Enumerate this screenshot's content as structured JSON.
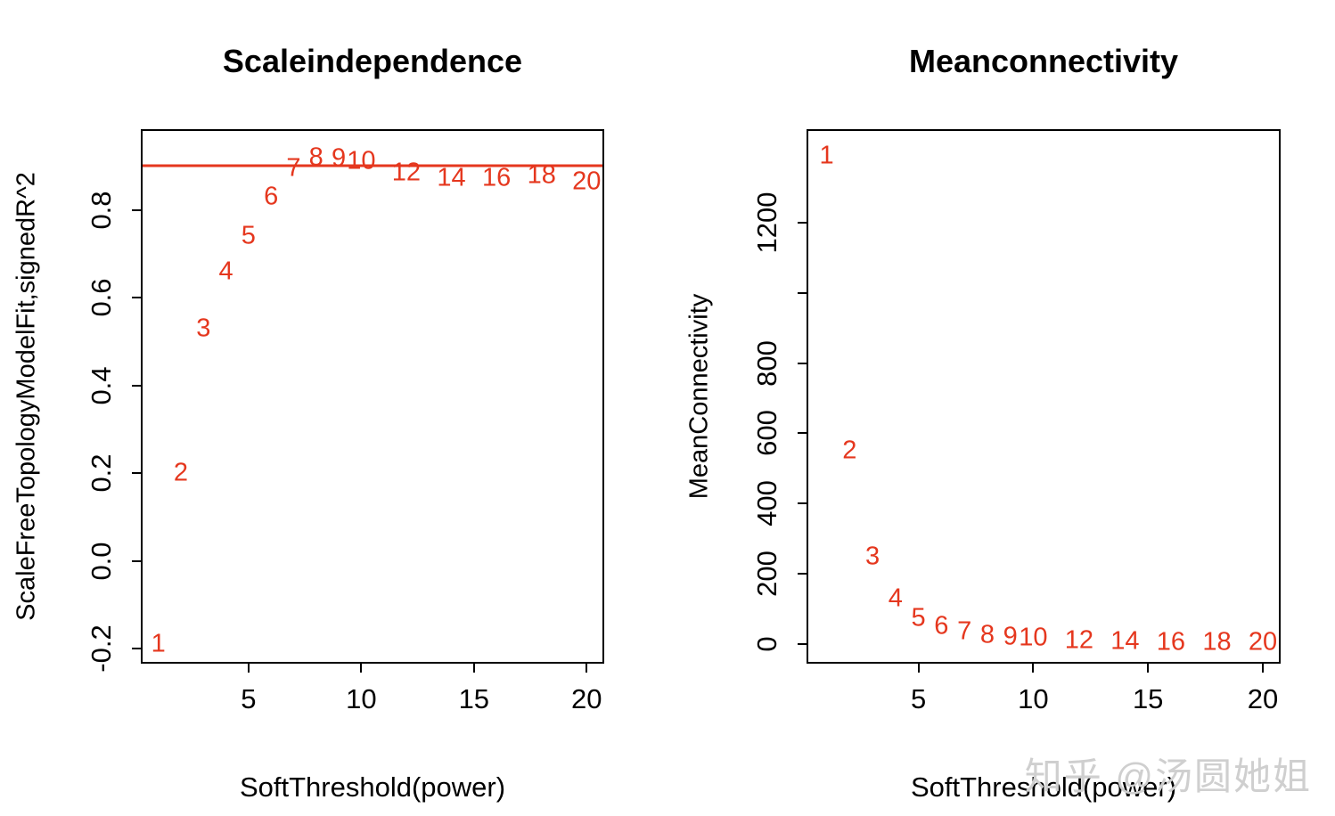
{
  "figure": {
    "background": "#ffffff"
  },
  "colors": {
    "points": "#e5371e",
    "threshold_line": "#e5371e",
    "axis": "#000000",
    "watermark": "#cfcfcf"
  },
  "watermark": {
    "text": "知乎 @汤圆她姐"
  },
  "chart_data": [
    {
      "type": "scatter",
      "point_style": "text-labels",
      "title": "Scaleindependence",
      "xlabel": "SoftThreshold(power)",
      "ylabel": "ScaleFreeTopologyModelFit,signedR^2",
      "grid": false,
      "legend": "none",
      "x": [
        1,
        2,
        3,
        4,
        5,
        6,
        7,
        8,
        9,
        10,
        12,
        14,
        16,
        18,
        20
      ],
      "y": [
        -0.19,
        0.2,
        0.53,
        0.66,
        0.74,
        0.83,
        0.895,
        0.92,
        0.918,
        0.91,
        0.885,
        0.872,
        0.872,
        0.878,
        0.865
      ],
      "labels": [
        "1",
        "2",
        "3",
        "4",
        "5",
        "6",
        "7",
        "8",
        "9",
        "10",
        "12",
        "14",
        "16",
        "18",
        "20"
      ],
      "hline": 0.9,
      "xlim": [
        0.3,
        20.7
      ],
      "ylim": [
        -0.23,
        0.98
      ],
      "xticks": {
        "values": [
          5,
          10,
          15,
          20
        ],
        "labels": [
          "5",
          "10",
          "15",
          "20"
        ]
      },
      "yticks": {
        "values": [
          -0.2,
          0.0,
          0.2,
          0.4,
          0.6,
          0.8
        ],
        "labels": [
          "-0.2",
          "0.0",
          "0.2",
          "0.4",
          "0.6",
          "0.8"
        ]
      }
    },
    {
      "type": "scatter",
      "point_style": "text-labels",
      "title": "Meanconnectivity",
      "xlabel": "SoftThreshold(power)",
      "ylabel": "MeanConnectivity",
      "grid": false,
      "legend": "none",
      "x": [
        1,
        2,
        3,
        4,
        5,
        6,
        7,
        8,
        9,
        10,
        12,
        14,
        16,
        18,
        20
      ],
      "y": [
        1390,
        550,
        250,
        130,
        75,
        52,
        35,
        27,
        22,
        18,
        12,
        9,
        7,
        6,
        5
      ],
      "labels": [
        "1",
        "2",
        "3",
        "4",
        "5",
        "6",
        "7",
        "8",
        "9",
        "10",
        "12",
        "14",
        "16",
        "18",
        "20"
      ],
      "hline": null,
      "xlim": [
        0.2,
        20.7
      ],
      "ylim": [
        -50,
        1460
      ],
      "xticks": {
        "values": [
          5,
          10,
          15,
          20
        ],
        "labels": [
          "5",
          "10",
          "15",
          "20"
        ]
      },
      "yticks": {
        "values": [
          0,
          200,
          400,
          600,
          800,
          1000,
          1200
        ],
        "labels": [
          "0",
          "200",
          "400",
          "600",
          "800",
          "",
          "1200"
        ]
      }
    }
  ]
}
